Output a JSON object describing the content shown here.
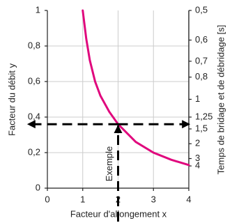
{
  "chart_data": {
    "type": "line",
    "x": [
      1,
      1.1,
      1.2,
      1.35,
      1.5,
      1.75,
      2,
      2.5,
      3,
      3.5,
      4
    ],
    "series": [
      {
        "color": "#e0077d",
        "values": [
          1.0,
          0.84,
          0.72,
          0.6,
          0.52,
          0.43,
          0.36,
          0.26,
          0.2,
          0.16,
          0.13
        ]
      }
    ],
    "xlim": [
      0,
      4
    ],
    "xticks": [
      0,
      1,
      2,
      3,
      4
    ],
    "ylim": [
      0,
      1
    ],
    "yticks": [
      0,
      {
        "value": 0.2,
        "label": "0,2"
      },
      {
        "value": 0.4,
        "label": "0,4"
      },
      {
        "value": 0.6,
        "label": "0,6"
      },
      {
        "value": 0.8,
        "label": "0,8"
      },
      1
    ],
    "y2scale": "reciprocal",
    "y2lim": [
      0.5,
      4
    ],
    "y2ticks": [
      {
        "value": 0.5,
        "label": "0,5"
      },
      {
        "value": 0.6,
        "label": "0,6"
      },
      {
        "value": 0.7,
        "label": "0,7"
      },
      {
        "value": 0.8,
        "label": "0,8"
      },
      1,
      {
        "value": 1.25,
        "label": "1,25"
      },
      {
        "value": 1.5,
        "label": "1,5"
      },
      2,
      3,
      4
    ],
    "grid": true,
    "xlabel": "Facteur d'allongement x",
    "ylabel": "Facteur du débit y",
    "y2label": "Temps de bridage et de débridage [s]",
    "annotation": {
      "text": "Exemple",
      "x": 2,
      "y": 0.36
    }
  }
}
